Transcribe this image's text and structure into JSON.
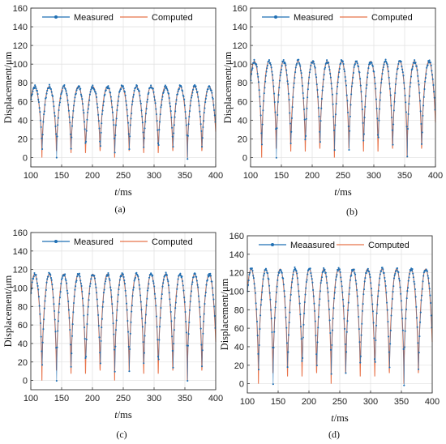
{
  "chart_data": [
    {
      "type": "line",
      "caption": "(a)",
      "xlabel_italic": "t",
      "xlabel_unit": "/ms",
      "ylabel": "Displacement/μm",
      "xlim": [
        100,
        400
      ],
      "ylim": [
        -10,
        160
      ],
      "xticks": [
        100,
        150,
        200,
        250,
        300,
        350,
        400
      ],
      "yticks": [
        0,
        20,
        40,
        60,
        80,
        100,
        120,
        140,
        160
      ],
      "grid": true,
      "legend_placement": "top",
      "period_ms": 23.6,
      "amplitude_um": 76,
      "series": [
        {
          "name": "Measured",
          "color": "#1f6fb4",
          "marker": "dot"
        },
        {
          "name": "Computed",
          "color": "#e8734a",
          "marker": "none"
        }
      ]
    },
    {
      "type": "line",
      "caption": "(b)",
      "xlabel_italic": "t",
      "xlabel_unit": "/ms",
      "ylabel": "Displacement/μm",
      "xlim": [
        100,
        400
      ],
      "ylim": [
        -10,
        160
      ],
      "xticks": [
        100,
        150,
        200,
        250,
        300,
        350,
        400
      ],
      "yticks": [
        0,
        20,
        40,
        60,
        80,
        100,
        120,
        140,
        160
      ],
      "grid": true,
      "legend_placement": "top",
      "period_ms": 23.6,
      "amplitude_um": 103,
      "series": [
        {
          "name": "Measured",
          "color": "#1f6fb4",
          "marker": "dot"
        },
        {
          "name": "Computed",
          "color": "#e8734a",
          "marker": "none"
        }
      ]
    },
    {
      "type": "line",
      "caption": "(c)",
      "xlabel_italic": "t",
      "xlabel_unit": "/ms",
      "ylabel": "Displacement/μm",
      "xlim": [
        100,
        400
      ],
      "ylim": [
        -10,
        160
      ],
      "xticks": [
        100,
        150,
        200,
        250,
        300,
        350,
        400
      ],
      "yticks": [
        0,
        20,
        40,
        60,
        80,
        100,
        120,
        140,
        160
      ],
      "grid": true,
      "legend_placement": "top",
      "period_ms": 23.6,
      "amplitude_um": 115,
      "series": [
        {
          "name": "Measured",
          "color": "#1f6fb4",
          "marker": "dot"
        },
        {
          "name": "Computed",
          "color": "#e8734a",
          "marker": "none"
        }
      ]
    },
    {
      "type": "line",
      "caption": "(d)",
      "xlabel_italic": "t",
      "xlabel_unit": "/ms",
      "ylabel": "Displacement/μm",
      "xlim": [
        100,
        400
      ],
      "ylim": [
        -10,
        160
      ],
      "xticks": [
        100,
        150,
        200,
        250,
        300,
        350,
        400
      ],
      "yticks": [
        0,
        20,
        40,
        60,
        80,
        100,
        120,
        140,
        160
      ],
      "grid": true,
      "legend_placement": "top",
      "period_ms": 23.6,
      "amplitude_um": 124,
      "series": [
        {
          "name": "Meaasured",
          "color": "#1f6fb4",
          "marker": "dot"
        },
        {
          "name": "Computed",
          "color": "#e8734a",
          "marker": "none"
        }
      ]
    }
  ]
}
